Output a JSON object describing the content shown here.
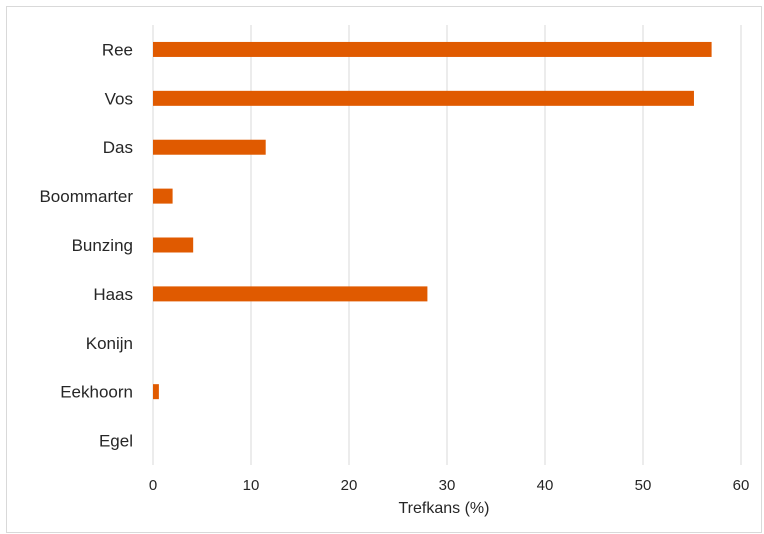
{
  "chart_data": {
    "type": "bar",
    "orientation": "horizontal",
    "categories": [
      "Ree",
      "Vos",
      "Das",
      "Boommarter",
      "Bunzing",
      "Haas",
      "Konijn",
      "Eekhoorn",
      "Egel"
    ],
    "values": [
      57,
      55.2,
      11.5,
      2,
      4.1,
      28,
      0,
      0.6,
      0
    ],
    "title": "",
    "xlabel": "Trefkans (%)",
    "ylabel": "",
    "xlim": [
      0,
      60
    ],
    "xticks": [
      0,
      10,
      20,
      30,
      40,
      50,
      60
    ],
    "grid": "vertical",
    "legend": "none",
    "bar_color": "#E05A00",
    "grid_color": "#d9d9d9",
    "text_color": "#262626"
  }
}
